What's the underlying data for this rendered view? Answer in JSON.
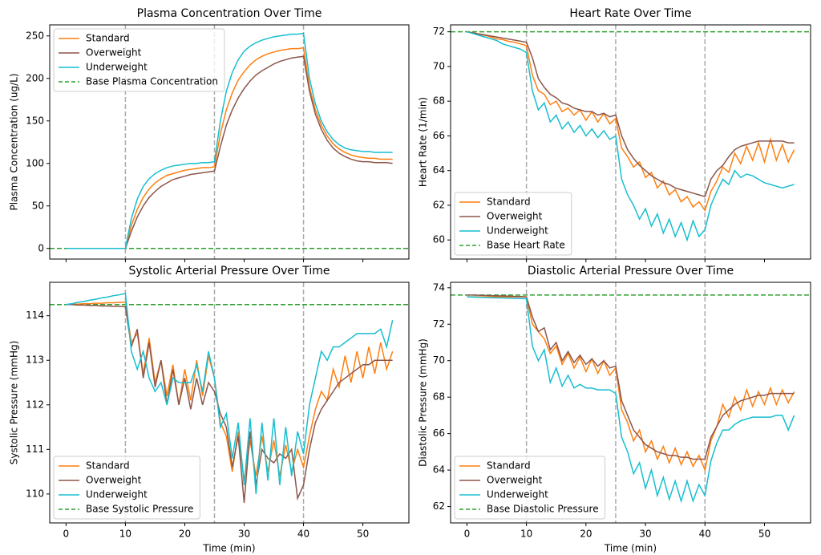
{
  "chart_data": [
    {
      "type": "line",
      "title": "Plasma Concentration Over Time",
      "ylabel": "Plasma Concentration (ug/L)",
      "legend": "upper left",
      "xtick_labels": false,
      "x": [
        0,
        1,
        2,
        3,
        4,
        5,
        6,
        7,
        8,
        9,
        10,
        11,
        12,
        13,
        14,
        15,
        16,
        17,
        18,
        19,
        20,
        21,
        22,
        23,
        24,
        25,
        26,
        27,
        28,
        29,
        30,
        31,
        32,
        33,
        34,
        35,
        36,
        37,
        38,
        39,
        40,
        41,
        42,
        43,
        44,
        45,
        46,
        47,
        48,
        49,
        50,
        51,
        52,
        53,
        54,
        55
      ],
      "xlim": [
        -2.75,
        57.75
      ],
      "xticks": [
        0,
        10,
        20,
        30,
        40,
        50
      ],
      "ylim": [
        -12.5,
        263
      ],
      "yticks": [
        0,
        50,
        100,
        150,
        200,
        250
      ],
      "vlines": [
        10,
        25,
        40
      ],
      "series": [
        {
          "name": "Standard",
          "color": "#ff7f0e",
          "values": [
            0,
            0,
            0,
            0,
            0,
            0,
            0,
            0,
            0,
            0,
            0,
            27,
            46,
            60,
            70,
            77,
            82,
            86,
            88,
            90,
            92,
            93,
            94,
            95,
            95,
            96,
            135,
            163,
            183,
            198,
            208,
            216,
            222,
            226,
            229,
            231,
            233,
            234,
            235,
            235,
            236,
            190,
            163,
            145,
            132,
            123,
            117,
            113,
            110,
            108,
            107,
            106,
            106,
            105,
            105,
            105
          ]
        },
        {
          "name": "Overweight",
          "color": "#8c564b",
          "values": [
            0,
            0,
            0,
            0,
            0,
            0,
            0,
            0,
            0,
            0,
            0,
            20,
            37,
            50,
            60,
            67,
            73,
            77,
            81,
            83,
            85,
            87,
            88,
            89,
            90,
            91,
            120,
            145,
            163,
            177,
            188,
            197,
            204,
            209,
            213,
            217,
            220,
            222,
            224,
            225,
            226,
            185,
            158,
            140,
            127,
            118,
            112,
            108,
            105,
            103,
            102,
            102,
            101,
            101,
            101,
            100
          ]
        },
        {
          "name": "Underweight",
          "color": "#17becf",
          "values": [
            0,
            0,
            0,
            0,
            0,
            0,
            0,
            0,
            0,
            0,
            0,
            35,
            58,
            73,
            82,
            88,
            92,
            95,
            97,
            98,
            99,
            100,
            100,
            101,
            101,
            102,
            150,
            185,
            207,
            222,
            232,
            238,
            242,
            245,
            247,
            249,
            250,
            251,
            252,
            252,
            253,
            200,
            170,
            150,
            137,
            128,
            122,
            118,
            116,
            115,
            114,
            114,
            113,
            113,
            113,
            113
          ]
        }
      ],
      "baseline": {
        "name": "Base Plasma Concentration",
        "color": "#2ca02c",
        "value": 0
      }
    },
    {
      "type": "line",
      "title": "Heart Rate Over Time",
      "ylabel": "Heart Rate (1/min)",
      "legend": "lower left",
      "xtick_labels": false,
      "x": [
        0,
        1,
        2,
        3,
        4,
        5,
        6,
        7,
        8,
        9,
        10,
        11,
        12,
        13,
        14,
        15,
        16,
        17,
        18,
        19,
        20,
        21,
        22,
        23,
        24,
        25,
        26,
        27,
        28,
        29,
        30,
        31,
        32,
        33,
        34,
        35,
        36,
        37,
        38,
        39,
        40,
        41,
        42,
        43,
        44,
        45,
        46,
        47,
        48,
        49,
        50,
        51,
        52,
        53,
        54,
        55
      ],
      "xlim": [
        -2.75,
        57.75
      ],
      "xticks": [
        0,
        10,
        20,
        30,
        40,
        50
      ],
      "ylim": [
        58.9,
        72.4
      ],
      "yticks": [
        60,
        62,
        64,
        66,
        68,
        70,
        72
      ],
      "vlines": [
        10,
        25,
        40
      ],
      "series": [
        {
          "name": "Standard",
          "color": "#ff7f0e",
          "values": [
            72,
            71.95,
            71.85,
            71.8,
            71.7,
            71.6,
            71.55,
            71.45,
            71.4,
            71.3,
            71.2,
            69.5,
            68.6,
            68.4,
            67.8,
            68.0,
            67.4,
            67.6,
            67.2,
            67.5,
            66.9,
            67.4,
            66.8,
            67.3,
            66.7,
            67.0,
            65.3,
            64.8,
            64.2,
            64.5,
            63.6,
            63.9,
            63.0,
            63.4,
            62.6,
            62.9,
            62.2,
            62.5,
            61.9,
            62.2,
            61.7,
            62.8,
            63.4,
            64.2,
            63.9,
            65.0,
            64.4,
            65.4,
            64.6,
            65.6,
            64.5,
            65.8,
            64.6,
            65.5,
            64.5,
            65.2
          ]
        },
        {
          "name": "Overweight",
          "color": "#8c564b",
          "values": [
            72,
            71.94,
            71.88,
            71.82,
            71.76,
            71.7,
            71.64,
            71.58,
            71.52,
            71.46,
            71.4,
            70.5,
            69.3,
            68.8,
            68.4,
            68.2,
            67.9,
            67.8,
            67.6,
            67.5,
            67.4,
            67.4,
            67.2,
            67.3,
            67.1,
            67.2,
            66.0,
            65.2,
            64.7,
            64.3,
            64.0,
            63.7,
            63.5,
            63.3,
            63.2,
            63.0,
            62.9,
            62.8,
            62.7,
            62.6,
            62.5,
            63.5,
            64.0,
            64.3,
            64.8,
            65.2,
            65.4,
            65.5,
            65.6,
            65.7,
            65.7,
            65.7,
            65.7,
            65.7,
            65.6,
            65.6
          ]
        },
        {
          "name": "Underweight",
          "color": "#17becf",
          "values": [
            72,
            71.9,
            71.8,
            71.7,
            71.6,
            71.5,
            71.3,
            71.2,
            71.1,
            71.0,
            70.8,
            68.6,
            67.5,
            67.9,
            66.8,
            67.2,
            66.4,
            66.8,
            66.2,
            66.6,
            66.0,
            66.4,
            65.9,
            66.3,
            65.8,
            66.0,
            63.5,
            62.6,
            62.0,
            61.2,
            61.8,
            60.8,
            61.5,
            60.4,
            61.2,
            60.2,
            61.0,
            60.0,
            61.1,
            60.2,
            60.6,
            62.0,
            62.8,
            63.5,
            63.2,
            64.0,
            63.6,
            63.8,
            63.7,
            63.5,
            63.3,
            63.2,
            63.1,
            63.0,
            63.1,
            63.2
          ]
        }
      ],
      "baseline": {
        "name": "Base Heart Rate",
        "color": "#2ca02c",
        "value": 72
      }
    },
    {
      "type": "line",
      "title": "Systolic Arterial Pressure Over Time",
      "ylabel": "Systolic Pressure (mmHg)",
      "xlabel": "Time (min)",
      "legend": "lower left",
      "x": [
        0,
        1,
        2,
        3,
        4,
        5,
        6,
        7,
        8,
        9,
        10,
        11,
        12,
        13,
        14,
        15,
        16,
        17,
        18,
        19,
        20,
        21,
        22,
        23,
        24,
        25,
        26,
        27,
        28,
        29,
        30,
        31,
        32,
        33,
        34,
        35,
        36,
        37,
        38,
        39,
        40,
        41,
        42,
        43,
        44,
        45,
        46,
        47,
        48,
        49,
        50,
        51,
        52,
        53,
        54,
        55
      ],
      "xlim": [
        -2.75,
        57.75
      ],
      "xticks": [
        0,
        10,
        20,
        30,
        40,
        50
      ],
      "ylim": [
        109.35,
        114.75
      ],
      "yticks": [
        110,
        111,
        112,
        113,
        114
      ],
      "vlines": [
        10,
        25,
        40
      ],
      "series": [
        {
          "name": "Standard",
          "color": "#ff7f0e",
          "values": [
            114.25,
            114.26,
            114.26,
            114.27,
            114.27,
            114.28,
            114.28,
            114.29,
            114.29,
            114.3,
            114.3,
            113.4,
            113.6,
            112.7,
            113.5,
            112.5,
            113.0,
            112.2,
            112.9,
            112.0,
            112.8,
            112.1,
            113.0,
            112.2,
            113.1,
            112.6,
            111.6,
            111.3,
            110.5,
            111.4,
            110.3,
            111.2,
            110.4,
            111.3,
            110.5,
            111.2,
            110.4,
            111.1,
            110.5,
            111.0,
            110.6,
            111.3,
            111.9,
            112.3,
            112.1,
            112.8,
            112.4,
            113.1,
            112.5,
            113.2,
            112.6,
            113.3,
            112.7,
            113.4,
            112.8,
            113.2
          ]
        },
        {
          "name": "Overweight",
          "color": "#8c564b",
          "values": [
            114.25,
            114.25,
            114.24,
            114.24,
            114.23,
            114.23,
            114.22,
            114.22,
            114.21,
            114.21,
            114.2,
            113.3,
            113.7,
            112.6,
            113.4,
            112.4,
            113.0,
            112.0,
            112.8,
            112.0,
            112.6,
            111.9,
            112.6,
            112.0,
            112.5,
            112.3,
            111.8,
            111.5,
            110.6,
            111.3,
            109.8,
            111.4,
            110.2,
            111.0,
            110.8,
            110.7,
            110.9,
            110.8,
            111.0,
            109.9,
            110.2,
            111.0,
            111.6,
            111.9,
            112.1,
            112.3,
            112.5,
            112.6,
            112.7,
            112.8,
            112.9,
            112.9,
            113.0,
            113.0,
            113.0,
            113.0
          ]
        },
        {
          "name": "Underweight",
          "color": "#17becf",
          "values": [
            114.25,
            114.27,
            114.3,
            114.32,
            114.35,
            114.37,
            114.4,
            114.42,
            114.45,
            114.47,
            114.5,
            113.2,
            112.8,
            113.2,
            112.6,
            112.3,
            112.5,
            112.0,
            112.6,
            112.5,
            112.5,
            112.5,
            112.9,
            112.3,
            113.2,
            112.6,
            111.5,
            111.8,
            110.8,
            111.6,
            110.2,
            111.7,
            110.0,
            111.6,
            110.3,
            111.7,
            110.2,
            111.5,
            110.4,
            111.4,
            110.9,
            112.0,
            112.6,
            113.2,
            113.0,
            113.3,
            113.3,
            113.4,
            113.5,
            113.6,
            113.6,
            113.6,
            113.6,
            113.7,
            113.3,
            113.9
          ]
        }
      ],
      "baseline": {
        "name": "Base Systolic Pressure",
        "color": "#2ca02c",
        "value": 114.25
      }
    },
    {
      "type": "line",
      "title": "Diastolic Arterial Pressure Over Time",
      "ylabel": "Diastolic Pressure (mmHg)",
      "xlabel": "Time (min)",
      "legend": "lower left",
      "x": [
        0,
        1,
        2,
        3,
        4,
        5,
        6,
        7,
        8,
        9,
        10,
        11,
        12,
        13,
        14,
        15,
        16,
        17,
        18,
        19,
        20,
        21,
        22,
        23,
        24,
        25,
        26,
        27,
        28,
        29,
        30,
        31,
        32,
        33,
        34,
        35,
        36,
        37,
        38,
        39,
        40,
        41,
        42,
        43,
        44,
        45,
        46,
        47,
        48,
        49,
        50,
        51,
        52,
        53,
        54,
        55
      ],
      "xlim": [
        -2.75,
        57.75
      ],
      "xticks": [
        0,
        10,
        20,
        30,
        40,
        50
      ],
      "ylim": [
        61.1,
        74.3
      ],
      "yticks": [
        62,
        64,
        66,
        68,
        70,
        72,
        74
      ],
      "vlines": [
        10,
        25,
        40
      ],
      "series": [
        {
          "name": "Standard",
          "color": "#ff7f0e",
          "values": [
            73.5,
            73.5,
            73.5,
            73.5,
            73.5,
            73.5,
            73.5,
            73.5,
            73.5,
            73.5,
            73.5,
            72.0,
            71.6,
            71.2,
            70.4,
            70.8,
            69.8,
            70.4,
            69.6,
            70.2,
            69.4,
            70.1,
            69.3,
            70.0,
            69.2,
            69.6,
            67.3,
            66.6,
            65.6,
            66.2,
            65.0,
            65.6,
            64.6,
            65.3,
            64.4,
            65.2,
            64.3,
            65.0,
            64.2,
            64.8,
            64.0,
            65.6,
            66.4,
            67.6,
            66.9,
            68.0,
            67.3,
            68.4,
            67.5,
            68.3,
            67.6,
            68.5,
            67.6,
            68.4,
            67.7,
            68.3
          ]
        },
        {
          "name": "Overweight",
          "color": "#8c564b",
          "values": [
            73.6,
            73.6,
            73.59,
            73.58,
            73.57,
            73.56,
            73.55,
            73.54,
            73.53,
            73.52,
            73.5,
            72.4,
            71.6,
            71.8,
            70.6,
            71.0,
            70.0,
            70.5,
            69.9,
            70.3,
            69.8,
            70.1,
            69.7,
            70.0,
            69.6,
            69.7,
            67.8,
            67.0,
            66.2,
            65.8,
            65.4,
            65.2,
            65.0,
            64.9,
            64.8,
            64.8,
            64.7,
            64.7,
            64.6,
            64.6,
            64.6,
            65.8,
            66.4,
            67.0,
            67.3,
            67.6,
            67.8,
            67.9,
            68.0,
            68.1,
            68.1,
            68.2,
            68.2,
            68.2,
            68.2,
            68.2
          ]
        },
        {
          "name": "Underweight",
          "color": "#17becf",
          "values": [
            73.5,
            73.49,
            73.48,
            73.47,
            73.46,
            73.45,
            73.44,
            73.43,
            73.42,
            73.41,
            73.4,
            70.8,
            70.0,
            70.6,
            68.8,
            69.6,
            68.6,
            69.2,
            68.5,
            68.7,
            68.5,
            68.5,
            68.4,
            68.4,
            68.4,
            68.2,
            65.8,
            65.0,
            63.8,
            64.4,
            63.0,
            64.0,
            62.6,
            63.6,
            62.4,
            63.4,
            62.3,
            63.4,
            62.3,
            63.2,
            62.6,
            64.5,
            65.5,
            66.2,
            66.2,
            66.5,
            66.7,
            66.8,
            66.9,
            66.9,
            66.9,
            66.9,
            67.0,
            67.0,
            66.2,
            67.0
          ]
        }
      ],
      "baseline": {
        "name": "Base Diastolic Pressure",
        "color": "#2ca02c",
        "value": 73.6
      }
    }
  ]
}
